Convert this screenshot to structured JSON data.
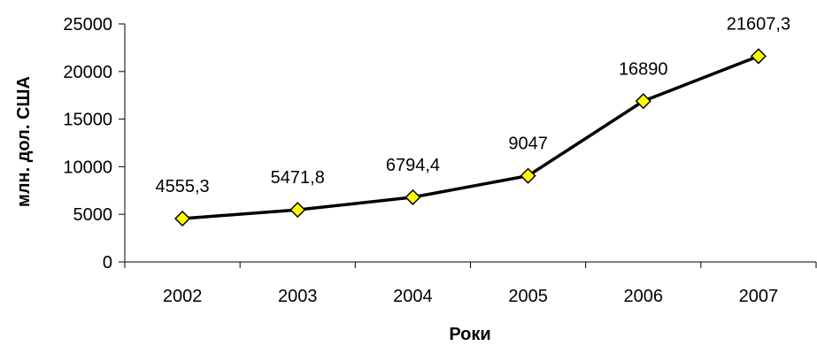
{
  "chart_data": {
    "type": "line",
    "categories": [
      "2002",
      "2003",
      "2004",
      "2005",
      "2006",
      "2007"
    ],
    "series": [
      {
        "values": [
          4555.3,
          5471.8,
          6794.4,
          9047,
          16890,
          21607.3
        ],
        "data_labels": [
          "4555,3",
          "5471,8",
          "6794,4",
          "9047",
          "16890",
          "21607,3"
        ],
        "color": "#000000",
        "marker": "diamond",
        "marker_fill": "#ffff00"
      }
    ],
    "xlabel": "Роки",
    "ylabel": "млн. дол. США",
    "ylim": [
      0,
      25000
    ],
    "yticks": [
      0,
      5000,
      10000,
      15000,
      20000,
      25000
    ],
    "ytick_labels": [
      "0",
      "5000",
      "10000",
      "15000",
      "20000",
      "25000"
    ],
    "grid": false,
    "legend": "none"
  }
}
